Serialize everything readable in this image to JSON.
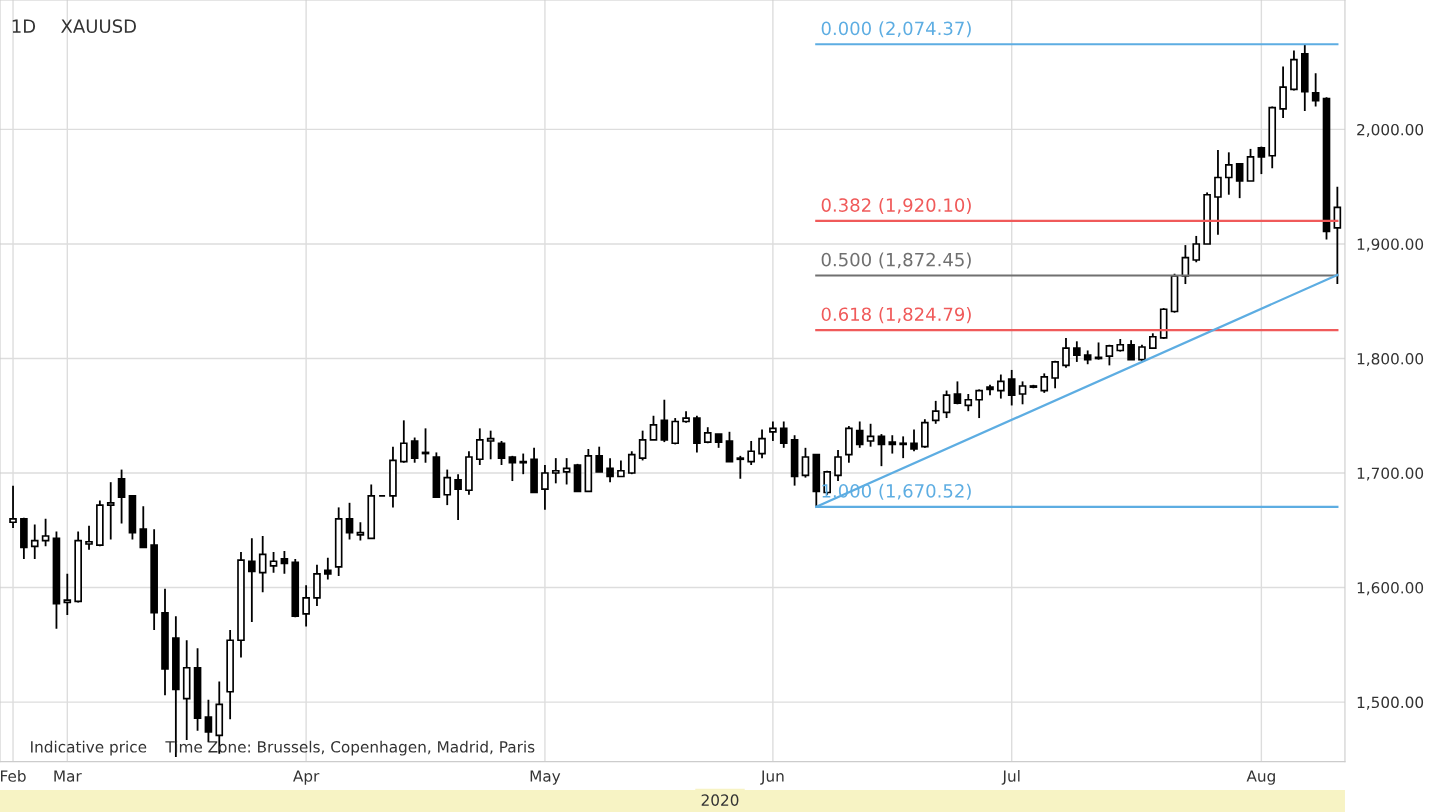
{
  "chart_data": {
    "type": "candlestick",
    "title": "XAUUSD",
    "subtitle": "1D",
    "xlabel": "2020",
    "annotations": [
      "Indicative price",
      "Time Zone: Brussels, Copenhagen, Madrid, Paris"
    ],
    "color": "#000000",
    "grid": true,
    "categories": [
      "Feb",
      null,
      null,
      null,
      null,
      "Mar",
      null,
      null,
      null,
      null,
      null,
      null,
      null,
      null,
      null,
      null,
      null,
      null,
      null,
      null,
      null,
      null,
      null,
      null,
      null,
      null,
      null,
      "Apr",
      null,
      null,
      null,
      null,
      null,
      null,
      null,
      null,
      null,
      null,
      null,
      null,
      null,
      null,
      null,
      null,
      null,
      null,
      null,
      null,
      null,
      "May",
      null,
      null,
      null,
      null,
      null,
      null,
      null,
      null,
      null,
      null,
      null,
      null,
      null,
      null,
      null,
      null,
      null,
      null,
      null,
      null,
      "Jun",
      null,
      null,
      null,
      null,
      null,
      null,
      null,
      null,
      null,
      null,
      null,
      null,
      null,
      null,
      null,
      null,
      null,
      null,
      null,
      null,
      null,
      "Jul",
      null,
      null,
      null,
      null,
      null,
      null,
      null,
      null,
      null,
      null,
      null,
      null,
      null,
      null,
      null,
      null,
      null,
      null,
      null,
      null,
      null,
      null,
      "Aug",
      null,
      null,
      null,
      null,
      null,
      null,
      null
    ],
    "ohlc": [
      [
        1657,
        1689,
        1652,
        1660
      ],
      [
        1660,
        1661,
        1625,
        1635
      ],
      [
        1636,
        1655,
        1625,
        1641
      ],
      [
        1641,
        1660,
        1636,
        1645
      ],
      [
        1643,
        1649,
        1564,
        1586
      ],
      [
        1587,
        1612,
        1576,
        1589
      ],
      [
        1588,
        1649,
        1587,
        1641
      ],
      [
        1638,
        1654,
        1633,
        1640
      ],
      [
        1637,
        1676,
        1636,
        1672
      ],
      [
        1672,
        1692,
        1642,
        1674
      ],
      [
        1695,
        1703,
        1656,
        1679
      ],
      [
        1680,
        1680,
        1642,
        1648
      ],
      [
        1651,
        1671,
        1635,
        1635
      ],
      [
        1637,
        1651,
        1563,
        1578
      ],
      [
        1578,
        1599,
        1506,
        1529
      ],
      [
        1556,
        1575,
        1452,
        1511
      ],
      [
        1503,
        1554,
        1467,
        1530
      ],
      [
        1530,
        1547,
        1475,
        1486
      ],
      [
        1487,
        1502,
        1465,
        1474
      ],
      [
        1471,
        1518,
        1455,
        1498
      ],
      [
        1509,
        1563,
        1485,
        1554
      ],
      [
        1554,
        1631,
        1539,
        1624
      ],
      [
        1623,
        1643,
        1570,
        1614
      ],
      [
        1613,
        1645,
        1596,
        1629
      ],
      [
        1619,
        1631,
        1613,
        1623
      ],
      [
        1625,
        1632,
        1612,
        1621
      ],
      [
        1622,
        1625,
        1574,
        1575
      ],
      [
        1577,
        1602,
        1566,
        1591
      ],
      [
        1591,
        1620,
        1584,
        1612
      ],
      [
        1615,
        1626,
        1607,
        1612
      ],
      [
        1618,
        1670,
        1610,
        1660
      ],
      [
        1660,
        1674,
        1642,
        1648
      ],
      [
        1646,
        1657,
        1641,
        1648
      ],
      [
        1643,
        1690,
        1643,
        1680
      ],
      [
        1680,
        1680,
        1680,
        1680
      ],
      [
        1680,
        1723,
        1670,
        1711
      ],
      [
        1710,
        1746,
        1709,
        1726
      ],
      [
        1728,
        1731,
        1709,
        1713
      ],
      [
        1717,
        1739,
        1709,
        1718
      ],
      [
        1714,
        1718,
        1679,
        1679
      ],
      [
        1681,
        1703,
        1672,
        1696
      ],
      [
        1694,
        1699,
        1659,
        1686
      ],
      [
        1685,
        1719,
        1681,
        1714
      ],
      [
        1712,
        1739,
        1707,
        1729
      ],
      [
        1728,
        1737,
        1712,
        1730
      ],
      [
        1726,
        1728,
        1707,
        1713
      ],
      [
        1714,
        1715,
        1693,
        1709
      ],
      [
        1710,
        1717,
        1699,
        1709
      ],
      [
        1712,
        1722,
        1683,
        1683
      ],
      [
        1686,
        1707,
        1668,
        1700
      ],
      [
        1700,
        1713,
        1691,
        1702
      ],
      [
        1701,
        1713,
        1690,
        1704
      ],
      [
        1707,
        1708,
        1684,
        1684
      ],
      [
        1684,
        1721,
        1684,
        1715
      ],
      [
        1715,
        1723,
        1701,
        1701
      ],
      [
        1704,
        1713,
        1692,
        1697
      ],
      [
        1697,
        1711,
        1697,
        1702
      ],
      [
        1700,
        1719,
        1699,
        1716
      ],
      [
        1713,
        1737,
        1711,
        1729
      ],
      [
        1729,
        1750,
        1729,
        1742
      ],
      [
        1746,
        1764,
        1727,
        1729
      ],
      [
        1726,
        1748,
        1725,
        1745
      ],
      [
        1745,
        1754,
        1744,
        1748
      ],
      [
        1748,
        1750,
        1718,
        1726
      ],
      [
        1727,
        1740,
        1726,
        1735
      ],
      [
        1734,
        1734,
        1722,
        1727
      ],
      [
        1728,
        1736,
        1710,
        1710
      ],
      [
        1713,
        1715,
        1695,
        1712
      ],
      [
        1710,
        1728,
        1707,
        1719
      ],
      [
        1717,
        1738,
        1713,
        1730
      ],
      [
        1736,
        1745,
        1728,
        1739
      ],
      [
        1739,
        1745,
        1722,
        1726
      ],
      [
        1729,
        1733,
        1689,
        1697
      ],
      [
        1698,
        1722,
        1696,
        1714
      ],
      [
        1716,
        1716,
        1670.52,
        1684
      ],
      [
        1683,
        1702,
        1681,
        1701
      ],
      [
        1698,
        1720,
        1693,
        1714
      ],
      [
        1716,
        1741,
        1709,
        1739
      ],
      [
        1737,
        1745,
        1722,
        1725
      ],
      [
        1728,
        1743,
        1723,
        1732
      ],
      [
        1732,
        1734,
        1706,
        1725
      ],
      [
        1727,
        1733,
        1717,
        1725
      ],
      [
        1725,
        1732,
        1713,
        1726
      ],
      [
        1726,
        1738,
        1719,
        1721
      ],
      [
        1723,
        1747,
        1722,
        1744
      ],
      [
        1746,
        1763,
        1743,
        1754
      ],
      [
        1753,
        1772,
        1748,
        1768
      ],
      [
        1769,
        1780,
        1760,
        1761
      ],
      [
        1759,
        1769,
        1754,
        1764
      ],
      [
        1764,
        1773,
        1748,
        1772
      ],
      [
        1775,
        1777,
        1768,
        1773
      ],
      [
        1772,
        1786,
        1765,
        1780
      ],
      [
        1782,
        1790,
        1759,
        1768
      ],
      [
        1769,
        1780,
        1760,
        1776
      ],
      [
        1775,
        1777,
        1774,
        1776
      ],
      [
        1772,
        1787,
        1770,
        1784
      ],
      [
        1783,
        1798,
        1774,
        1797
      ],
      [
        1794,
        1818,
        1792,
        1809
      ],
      [
        1809,
        1815,
        1797,
        1803
      ],
      [
        1803,
        1807,
        1795,
        1799
      ],
      [
        1800,
        1814,
        1799,
        1801
      ],
      [
        1802,
        1812,
        1794,
        1811
      ],
      [
        1807,
        1817,
        1806,
        1812
      ],
      [
        1812,
        1816,
        1799,
        1799
      ],
      [
        1799,
        1812,
        1798,
        1810
      ],
      [
        1809,
        1822,
        1809,
        1819
      ],
      [
        1818,
        1844,
        1817,
        1843
      ],
      [
        1841,
        1874,
        1840,
        1872
      ],
      [
        1872,
        1899,
        1865,
        1888
      ],
      [
        1886,
        1907,
        1884,
        1900
      ],
      [
        1900,
        1945,
        1900,
        1943
      ],
      [
        1941,
        1982,
        1908,
        1958
      ],
      [
        1958,
        1980,
        1943,
        1969
      ],
      [
        1970,
        1970,
        1940,
        1955
      ],
      [
        1955,
        1983,
        1955,
        1976
      ],
      [
        1984,
        1985,
        1961,
        1976
      ],
      [
        1977,
        2020,
        1966,
        2019
      ],
      [
        2018,
        2055,
        2010,
        2037
      ],
      [
        2035,
        2069,
        2034,
        2061
      ],
      [
        2066,
        2074.37,
        2016,
        2033
      ],
      [
        2032,
        2049,
        2020,
        2025
      ],
      [
        2027,
        2028,
        1904,
        1911
      ],
      [
        1914,
        1950,
        1865,
        1932
      ]
    ],
    "series": [
      {
        "type": "line",
        "name": "0.000 (2,074.37)",
        "color": "#5dade2",
        "values": [
          null,
          null,
          null,
          null,
          null,
          null,
          null,
          null,
          null,
          null,
          null,
          null,
          null,
          null,
          null,
          null,
          null,
          null,
          null,
          null,
          null,
          null,
          null,
          null,
          null,
          null,
          null,
          null,
          null,
          null,
          null,
          null,
          null,
          null,
          null,
          null,
          null,
          null,
          null,
          null,
          null,
          null,
          null,
          null,
          null,
          null,
          null,
          null,
          null,
          null,
          null,
          null,
          null,
          null,
          null,
          null,
          null,
          null,
          null,
          null,
          null,
          null,
          null,
          null,
          null,
          null,
          null,
          null,
          null,
          null,
          null,
          null,
          null,
          null,
          2074.37,
          null,
          null,
          null,
          null,
          null,
          null,
          null,
          null,
          null,
          null,
          null,
          null,
          null,
          null,
          null,
          null,
          null,
          null,
          null,
          null,
          null,
          null,
          null,
          null,
          null,
          null,
          null,
          null,
          null,
          null,
          null,
          null,
          null,
          null,
          null,
          null,
          null,
          null,
          null,
          null,
          null,
          null,
          null,
          null,
          null,
          null,
          null,
          2074.37
        ]
      },
      {
        "type": "line",
        "name": "0.382 (1,920.10)",
        "color": "#f05a5a",
        "values": [
          null,
          null,
          null,
          null,
          null,
          null,
          null,
          null,
          null,
          null,
          null,
          null,
          null,
          null,
          null,
          null,
          null,
          null,
          null,
          null,
          null,
          null,
          null,
          null,
          null,
          null,
          null,
          null,
          null,
          null,
          null,
          null,
          null,
          null,
          null,
          null,
          null,
          null,
          null,
          null,
          null,
          null,
          null,
          null,
          null,
          null,
          null,
          null,
          null,
          null,
          null,
          null,
          null,
          null,
          null,
          null,
          null,
          null,
          null,
          null,
          null,
          null,
          null,
          null,
          null,
          null,
          null,
          null,
          null,
          null,
          null,
          null,
          null,
          null,
          1920.1,
          null,
          null,
          null,
          null,
          null,
          null,
          null,
          null,
          null,
          null,
          null,
          null,
          null,
          null,
          null,
          null,
          null,
          null,
          null,
          null,
          null,
          null,
          null,
          null,
          null,
          null,
          null,
          null,
          null,
          null,
          null,
          null,
          null,
          null,
          null,
          null,
          null,
          null,
          null,
          null,
          null,
          null,
          null,
          null,
          null,
          null,
          null,
          1920.1
        ]
      },
      {
        "type": "line",
        "name": "0.500 (1,872.45)",
        "color": "#707070",
        "values": [
          null,
          null,
          null,
          null,
          null,
          null,
          null,
          null,
          null,
          null,
          null,
          null,
          null,
          null,
          null,
          null,
          null,
          null,
          null,
          null,
          null,
          null,
          null,
          null,
          null,
          null,
          null,
          null,
          null,
          null,
          null,
          null,
          null,
          null,
          null,
          null,
          null,
          null,
          null,
          null,
          null,
          null,
          null,
          null,
          null,
          null,
          null,
          null,
          null,
          null,
          null,
          null,
          null,
          null,
          null,
          null,
          null,
          null,
          null,
          null,
          null,
          null,
          null,
          null,
          null,
          null,
          null,
          null,
          null,
          null,
          null,
          null,
          null,
          null,
          1872.45,
          null,
          null,
          null,
          null,
          null,
          null,
          null,
          null,
          null,
          null,
          null,
          null,
          null,
          null,
          null,
          null,
          null,
          null,
          null,
          null,
          null,
          null,
          null,
          null,
          null,
          null,
          null,
          null,
          null,
          null,
          null,
          null,
          null,
          null,
          null,
          null,
          null,
          null,
          null,
          null,
          null,
          null,
          null,
          null,
          null,
          null,
          null,
          1872.45
        ]
      },
      {
        "type": "line",
        "name": "0.618 (1,824.79)",
        "color": "#f05a5a",
        "values": [
          null,
          null,
          null,
          null,
          null,
          null,
          null,
          null,
          null,
          null,
          null,
          null,
          null,
          null,
          null,
          null,
          null,
          null,
          null,
          null,
          null,
          null,
          null,
          null,
          null,
          null,
          null,
          null,
          null,
          null,
          null,
          null,
          null,
          null,
          null,
          null,
          null,
          null,
          null,
          null,
          null,
          null,
          null,
          null,
          null,
          null,
          null,
          null,
          null,
          null,
          null,
          null,
          null,
          null,
          null,
          null,
          null,
          null,
          null,
          null,
          null,
          null,
          null,
          null,
          null,
          null,
          null,
          null,
          null,
          null,
          null,
          null,
          null,
          null,
          1824.79,
          null,
          null,
          null,
          null,
          null,
          null,
          null,
          null,
          null,
          null,
          null,
          null,
          null,
          null,
          null,
          null,
          null,
          null,
          null,
          null,
          null,
          null,
          null,
          null,
          null,
          null,
          null,
          null,
          null,
          null,
          null,
          null,
          null,
          null,
          null,
          null,
          null,
          null,
          null,
          null,
          null,
          null,
          null,
          null,
          null,
          null,
          null,
          1824.79
        ]
      },
      {
        "type": "line",
        "name": "1.000 (1,670.52)",
        "color": "#5dade2",
        "values": [
          null,
          null,
          null,
          null,
          null,
          null,
          null,
          null,
          null,
          null,
          null,
          null,
          null,
          null,
          null,
          null,
          null,
          null,
          null,
          null,
          null,
          null,
          null,
          null,
          null,
          null,
          null,
          null,
          null,
          null,
          null,
          null,
          null,
          null,
          null,
          null,
          null,
          null,
          null,
          null,
          null,
          null,
          null,
          null,
          null,
          null,
          null,
          null,
          null,
          null,
          null,
          null,
          null,
          null,
          null,
          null,
          null,
          null,
          null,
          null,
          null,
          null,
          null,
          null,
          null,
          null,
          null,
          null,
          null,
          null,
          null,
          null,
          null,
          null,
          1670.52,
          null,
          null,
          null,
          null,
          null,
          null,
          null,
          null,
          null,
          null,
          null,
          null,
          null,
          null,
          null,
          null,
          null,
          null,
          null,
          null,
          null,
          null,
          null,
          null,
          null,
          null,
          null,
          null,
          null,
          null,
          null,
          null,
          null,
          null,
          null,
          null,
          null,
          null,
          null,
          null,
          null,
          null,
          null,
          null,
          null,
          null,
          null,
          1670.52
        ]
      },
      {
        "type": "line",
        "color": "#5dade2",
        "values": [
          null,
          null,
          null,
          null,
          null,
          null,
          null,
          null,
          null,
          null,
          null,
          null,
          null,
          null,
          null,
          null,
          null,
          null,
          null,
          null,
          null,
          null,
          null,
          null,
          null,
          null,
          null,
          null,
          null,
          null,
          null,
          null,
          null,
          null,
          null,
          null,
          null,
          null,
          null,
          null,
          null,
          null,
          null,
          null,
          null,
          null,
          null,
          null,
          null,
          null,
          null,
          null,
          null,
          null,
          null,
          null,
          null,
          null,
          null,
          null,
          null,
          null,
          null,
          null,
          null,
          null,
          null,
          null,
          null,
          null,
          null,
          null,
          null,
          null,
          1670.52,
          null,
          null,
          null,
          null,
          null,
          null,
          null,
          null,
          null,
          null,
          null,
          null,
          null,
          null,
          null,
          null,
          null,
          null,
          null,
          null,
          null,
          null,
          null,
          null,
          null,
          null,
          null,
          null,
          null,
          null,
          null,
          null,
          null,
          null,
          null,
          null,
          null,
          null,
          null,
          null,
          null,
          null,
          null,
          null,
          null,
          null,
          null,
          1873
        ]
      }
    ],
    "ylim": [
      1448,
      2113
    ],
    "yticks": [
      {
        "value": 1500,
        "label": "1,500.00"
      },
      {
        "value": 1600,
        "label": "1,600.00"
      },
      {
        "value": 1700,
        "label": "1,700.00"
      },
      {
        "value": 1800,
        "label": "1,800.00"
      },
      {
        "value": 1900,
        "label": "1,900.00"
      },
      {
        "value": 2000,
        "label": "2,000.00"
      }
    ]
  }
}
